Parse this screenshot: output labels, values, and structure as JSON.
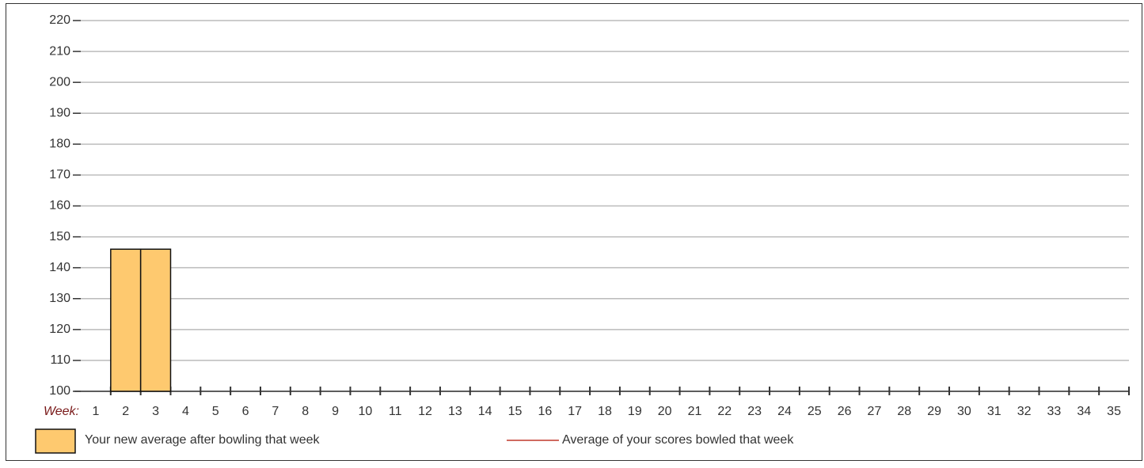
{
  "chart_data": {
    "type": "bar",
    "xlabel": "Week:",
    "categories": [
      "1",
      "2",
      "3",
      "4",
      "5",
      "6",
      "7",
      "8",
      "9",
      "10",
      "11",
      "12",
      "13",
      "14",
      "15",
      "16",
      "17",
      "18",
      "19",
      "20",
      "21",
      "22",
      "23",
      "24",
      "25",
      "26",
      "27",
      "28",
      "29",
      "30",
      "31",
      "32",
      "33",
      "34",
      "35"
    ],
    "series": [
      {
        "name": "Your new average after bowling that week",
        "color": "#fec96f",
        "type": "bar",
        "values": [
          null,
          146,
          146,
          null,
          null,
          null,
          null,
          null,
          null,
          null,
          null,
          null,
          null,
          null,
          null,
          null,
          null,
          null,
          null,
          null,
          null,
          null,
          null,
          null,
          null,
          null,
          null,
          null,
          null,
          null,
          null,
          null,
          null,
          null,
          null
        ]
      },
      {
        "name": "Average of your scores bowled that week",
        "color": "#c0392b",
        "type": "line",
        "values": [
          null,
          null,
          null,
          null,
          null,
          null,
          null,
          null,
          null,
          null,
          null,
          null,
          null,
          null,
          null,
          null,
          null,
          null,
          null,
          null,
          null,
          null,
          null,
          null,
          null,
          null,
          null,
          null,
          null,
          null,
          null,
          null,
          null,
          null,
          null
        ]
      }
    ],
    "ylim": [
      100,
      220
    ],
    "yticks": [
      100,
      110,
      120,
      130,
      140,
      150,
      160,
      170,
      180,
      190,
      200,
      210,
      220
    ],
    "grid": true
  }
}
